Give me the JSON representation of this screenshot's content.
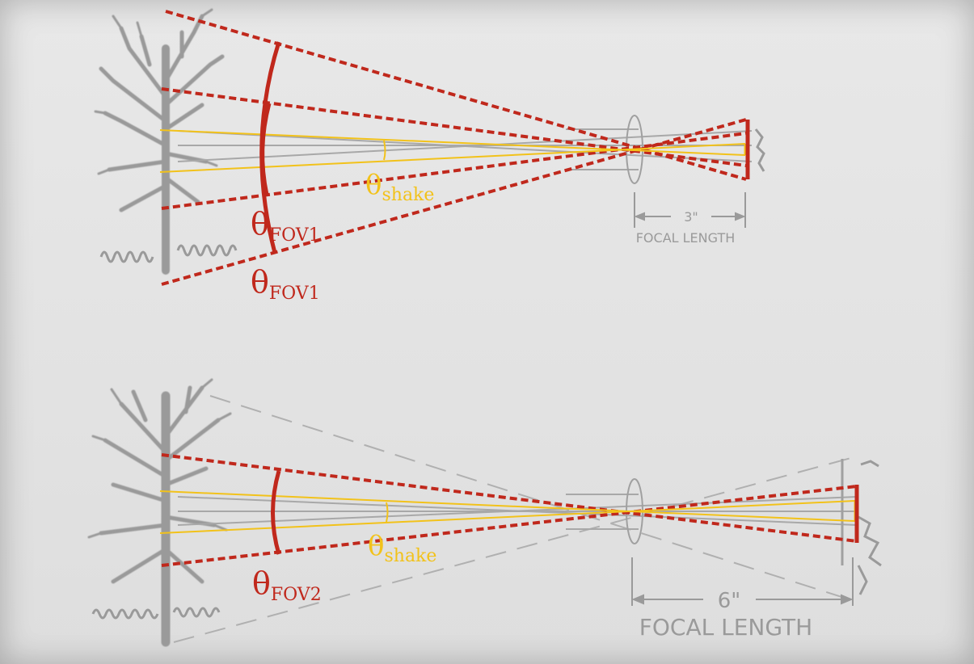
{
  "colors": {
    "fov_red": "#c0281c",
    "shake_yellow": "#f2c21a",
    "sketch_gray": "#9a9a9a"
  },
  "panel1": {
    "focal_value": "3\"",
    "focal_label": "FOCAL LENGTH",
    "theta_shake": {
      "symbol": "θ",
      "sub": "shake"
    },
    "theta_fov_a": {
      "symbol": "θ",
      "sub": "FOV1"
    },
    "theta_fov_b": {
      "symbol": "θ",
      "sub": "FOV1"
    }
  },
  "panel2": {
    "focal_value": "6\"",
    "focal_label": "FOCAL LENGTH",
    "theta_shake": {
      "symbol": "θ",
      "sub": "shake"
    },
    "theta_fov": {
      "symbol": "θ",
      "sub": "FOV2"
    }
  }
}
